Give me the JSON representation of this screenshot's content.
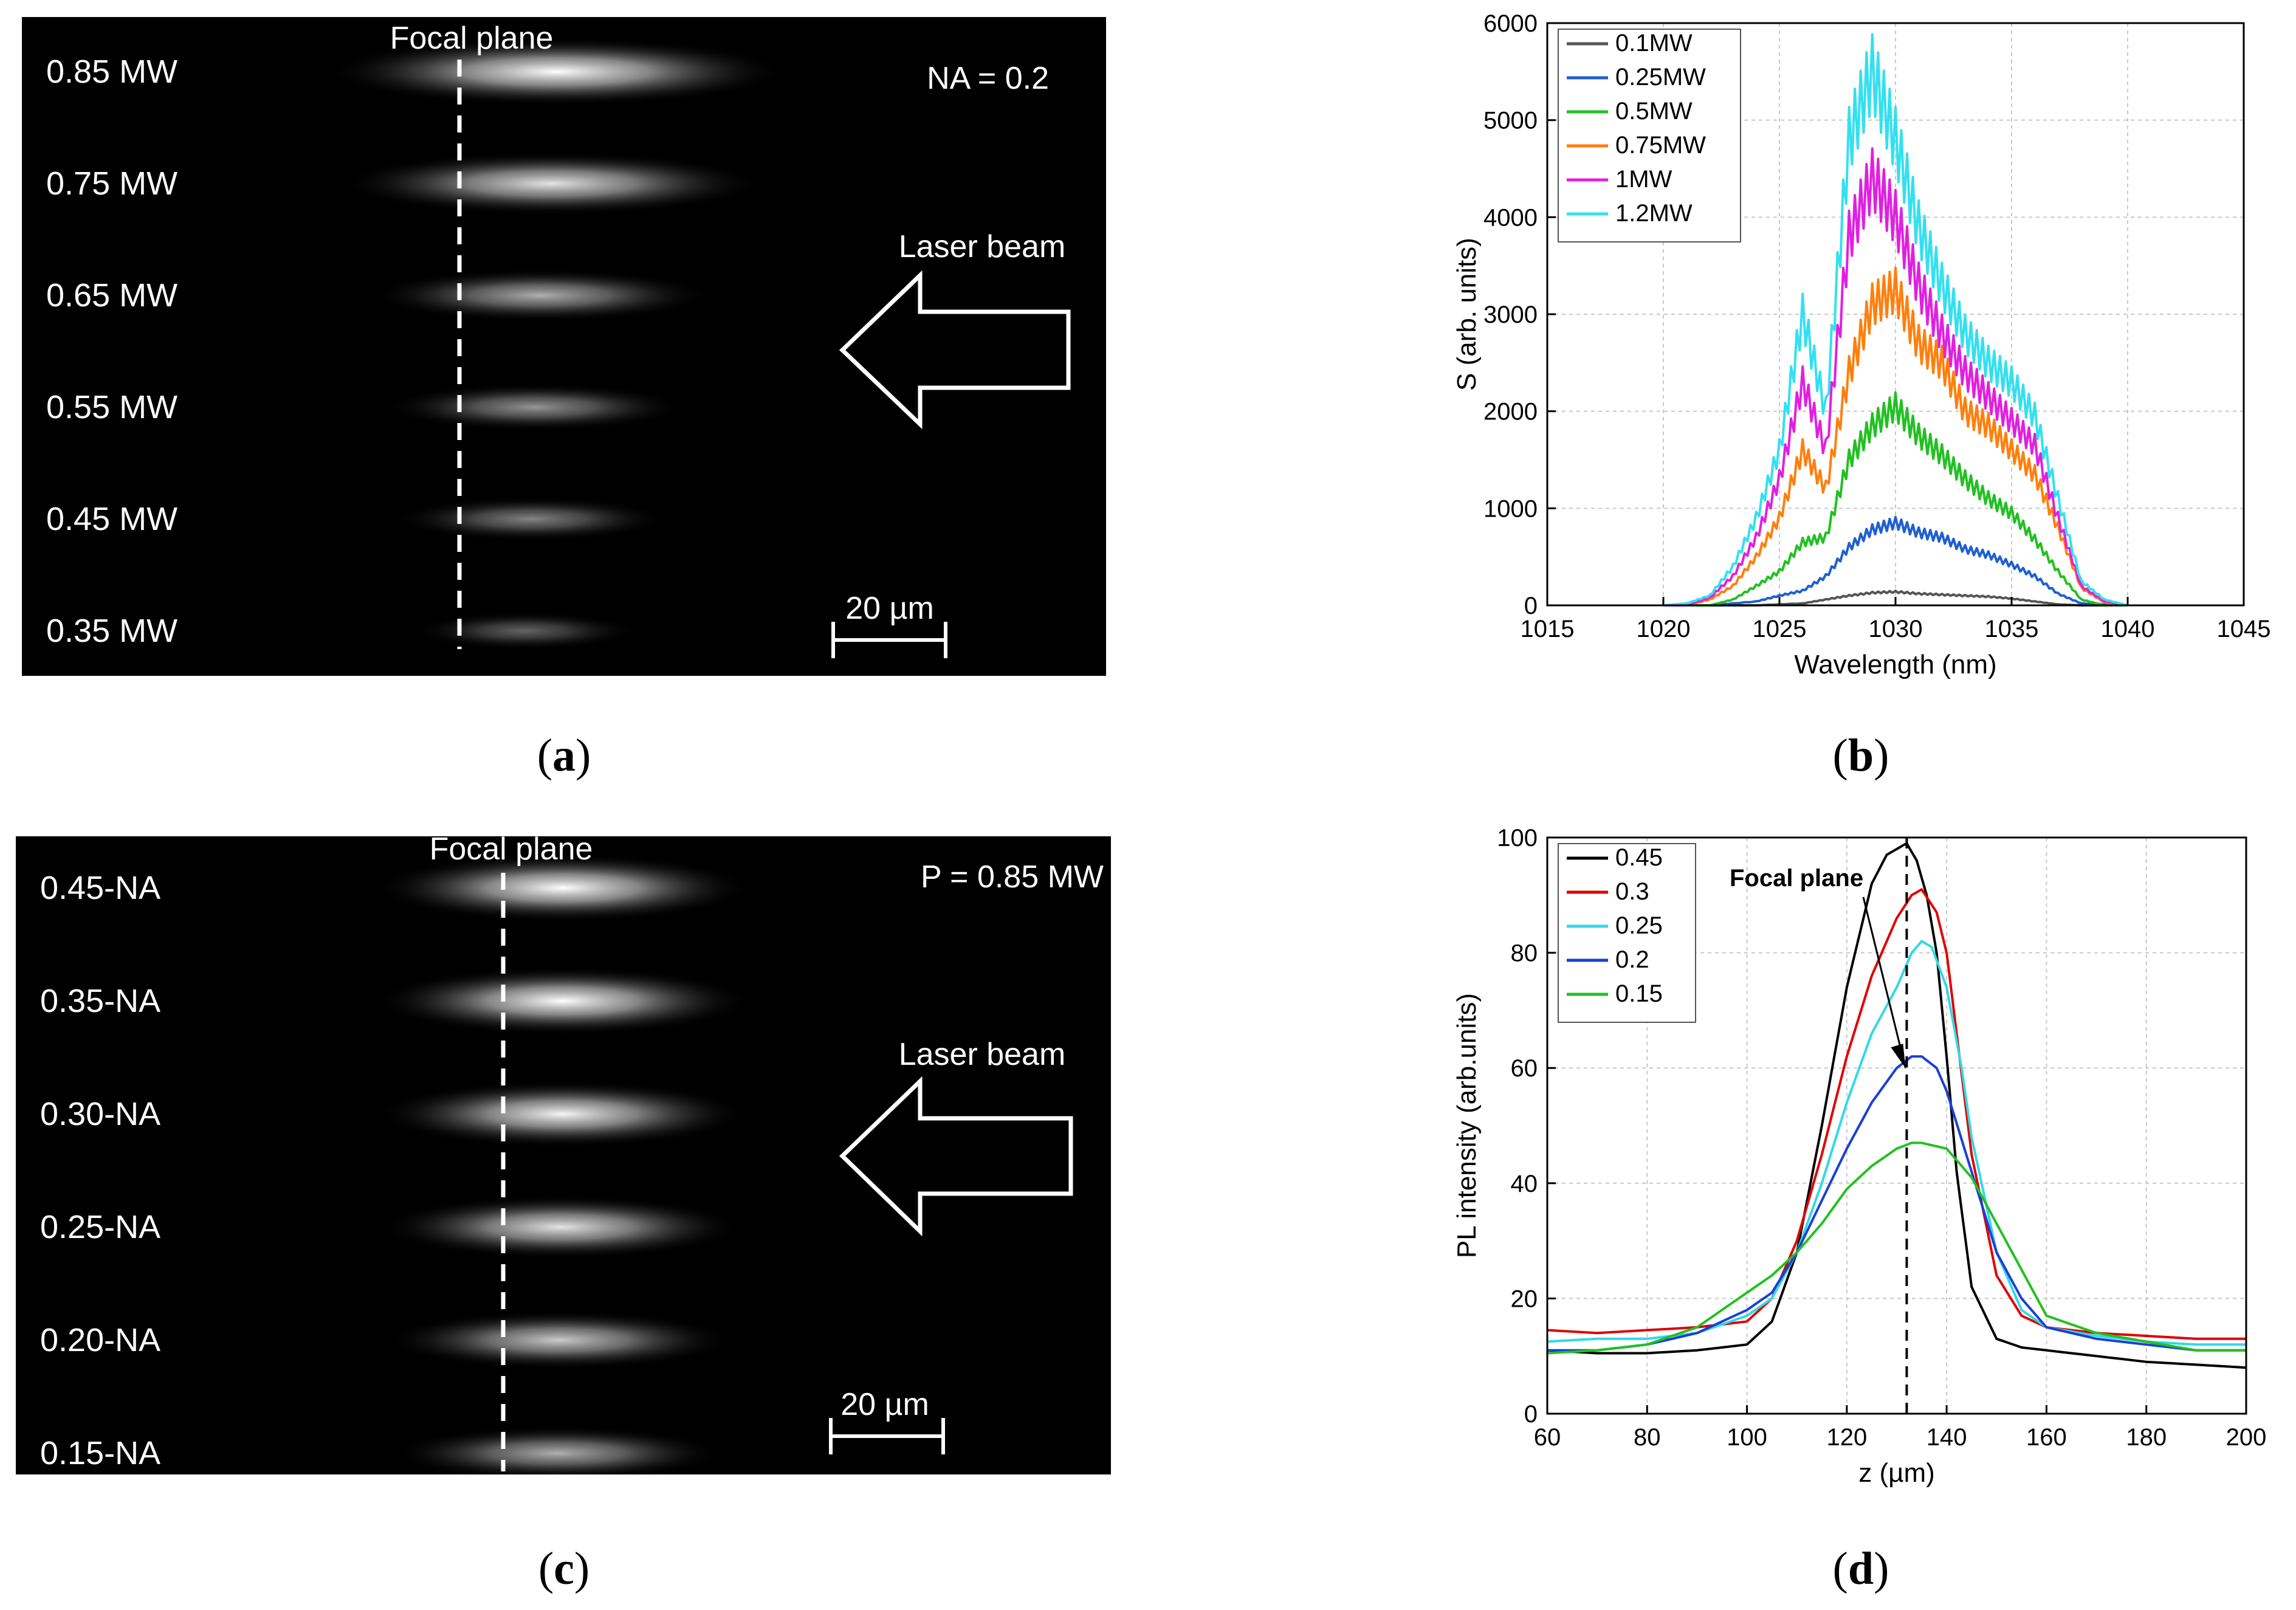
{
  "panel_a": {
    "focal_plane_label": "Focal plane",
    "param_label": "NA = 0.2",
    "laser_label": "Laser beam",
    "scale_label": "20 µm",
    "rows": [
      {
        "label": "0.85 MW",
        "brightness": 1.0
      },
      {
        "label": "0.75 MW",
        "brightness": 0.85
      },
      {
        "label": "0.65 MW",
        "brightness": 0.55
      },
      {
        "label": "0.55 MW",
        "brightness": 0.4
      },
      {
        "label": "0.45 MW",
        "brightness": 0.3
      },
      {
        "label": "0.35 MW",
        "brightness": 0.12
      }
    ],
    "caption": {
      "open": "(",
      "letter": "a",
      "close": ")"
    }
  },
  "panel_c": {
    "focal_plane_label": "Focal plane",
    "param_label": "P = 0.85 MW",
    "laser_label": "Laser beam",
    "scale_label": "20 µm",
    "rows": [
      {
        "label": "0.45-NA",
        "brightness": 1.0
      },
      {
        "label": "0.35-NA",
        "brightness": 1.0
      },
      {
        "label": "0.30-NA",
        "brightness": 0.95
      },
      {
        "label": "0.25-NA",
        "brightness": 0.85
      },
      {
        "label": "0.20-NA",
        "brightness": 0.7
      },
      {
        "label": "0.15-NA",
        "brightness": 0.55
      }
    ],
    "caption": {
      "open": "(",
      "letter": "c",
      "close": ")"
    }
  },
  "chart_b_caption": {
    "open": "(",
    "letter": "b",
    "close": ")"
  },
  "chart_d_caption": {
    "open": "(",
    "letter": "d",
    "close": ")"
  },
  "chart_data": [
    {
      "id": "b",
      "type": "line",
      "xlabel": "Wavelength (nm)",
      "ylabel": "S (arb. units)",
      "xlim": [
        1015,
        1045
      ],
      "ylim": [
        0,
        6000
      ],
      "xticks": [
        1015,
        1020,
        1025,
        1030,
        1035,
        1040,
        1045
      ],
      "yticks": [
        0,
        1000,
        2000,
        3000,
        4000,
        5000,
        6000
      ],
      "grid": true,
      "legend_position": "top-left",
      "series": [
        {
          "name": "0.1MW",
          "color": "#555555",
          "peak": 150,
          "x": [
            1020,
            1022,
            1024,
            1026,
            1027,
            1028,
            1029,
            1030,
            1031,
            1032,
            1033,
            1034,
            1035,
            1036,
            1037,
            1038,
            1040
          ],
          "y": [
            0,
            0,
            0,
            20,
            60,
            100,
            130,
            140,
            120,
            110,
            100,
            90,
            70,
            40,
            10,
            0,
            0
          ]
        },
        {
          "name": "0.25MW",
          "color": "#1f5fd0",
          "peak": 860,
          "x": [
            1020,
            1022,
            1024,
            1025,
            1026,
            1027,
            1028,
            1029,
            1030,
            1031,
            1032,
            1033,
            1034,
            1035,
            1036,
            1037,
            1038,
            1040
          ],
          "y": [
            0,
            0,
            40,
            100,
            150,
            300,
            600,
            780,
            850,
            750,
            700,
            580,
            520,
            420,
            300,
            120,
            20,
            0
          ]
        },
        {
          "name": "0.5MW",
          "color": "#22c022",
          "peak": 2090,
          "x": [
            1020,
            1022,
            1023,
            1024,
            1025,
            1026,
            1027,
            1028,
            1029,
            1030,
            1031,
            1032,
            1033,
            1034,
            1035,
            1036,
            1037,
            1038,
            1039,
            1040
          ],
          "y": [
            0,
            0,
            60,
            200,
            350,
            650,
            700,
            1500,
            1850,
            2050,
            1750,
            1550,
            1300,
            1100,
            950,
            680,
            350,
            60,
            0,
            0
          ]
        },
        {
          "name": "0.75MW",
          "color": "#ff7f0e",
          "peak": 3270,
          "x": [
            1020,
            1021,
            1022,
            1023,
            1024,
            1025,
            1026,
            1027,
            1028,
            1029,
            1030,
            1031,
            1032,
            1033,
            1034,
            1035,
            1036,
            1037,
            1038,
            1039,
            1040
          ],
          "y": [
            0,
            0,
            60,
            200,
            500,
            900,
            1600,
            1200,
            2400,
            3100,
            3250,
            2700,
            2500,
            2000,
            1850,
            1600,
            1350,
            800,
            180,
            30,
            0
          ]
        },
        {
          "name": "1MW",
          "color": "#e020e0",
          "peak": 4560,
          "x": [
            1020,
            1021,
            1022,
            1023,
            1024,
            1025,
            1026,
            1027,
            1028,
            1029,
            1030,
            1031,
            1032,
            1033,
            1034,
            1035,
            1036,
            1037,
            1038,
            1039,
            1040
          ],
          "y": [
            0,
            0,
            80,
            300,
            700,
            1300,
            2300,
            1600,
            3800,
            4400,
            4000,
            3300,
            2800,
            2400,
            2150,
            1900,
            1650,
            900,
            200,
            40,
            0
          ]
        },
        {
          "name": "1.2MW",
          "color": "#33e0f0",
          "peak": 5790,
          "x": [
            1020,
            1021,
            1022,
            1023,
            1024,
            1025,
            1026,
            1027,
            1028,
            1029,
            1030,
            1031,
            1032,
            1033,
            1034,
            1035,
            1036,
            1037,
            1038,
            1039,
            1040
          ],
          "y": [
            0,
            20,
            100,
            400,
            900,
            1600,
            3000,
            2000,
            4800,
            5500,
            4800,
            3900,
            3300,
            2800,
            2500,
            2300,
            1950,
            1100,
            250,
            60,
            0
          ]
        }
      ]
    },
    {
      "id": "d",
      "type": "line",
      "xlabel": "z (µm)",
      "ylabel": "PL intensity (arb.units)",
      "xlim": [
        60,
        200
      ],
      "ylim": [
        0,
        100
      ],
      "xticks": [
        60,
        80,
        100,
        120,
        140,
        160,
        180,
        200
      ],
      "yticks": [
        0,
        20,
        40,
        60,
        80,
        100
      ],
      "grid": true,
      "legend_position": "top-left",
      "annotation": {
        "text": "Focal plane",
        "x": 132
      },
      "series": [
        {
          "name": "0.45",
          "color": "#000000",
          "x": [
            60,
            70,
            80,
            90,
            100,
            105,
            110,
            115,
            120,
            125,
            128,
            130,
            132,
            134,
            136,
            138,
            140,
            142,
            145,
            150,
            155,
            160,
            170,
            180,
            190,
            200
          ],
          "y": [
            11,
            10.5,
            10.5,
            11,
            12,
            16,
            28,
            50,
            74,
            92,
            97,
            98,
            99,
            96,
            90,
            80,
            62,
            42,
            22,
            13,
            11.5,
            11,
            10,
            9,
            8.5,
            8
          ]
        },
        {
          "name": "0.3",
          "color": "#e00000",
          "x": [
            60,
            70,
            80,
            90,
            100,
            105,
            110,
            115,
            120,
            125,
            130,
            133,
            135,
            138,
            140,
            142,
            145,
            150,
            155,
            160,
            170,
            180,
            190,
            200
          ],
          "y": [
            14.5,
            14,
            14.5,
            15,
            16,
            20,
            30,
            45,
            62,
            76,
            86,
            90,
            91,
            87,
            80,
            66,
            45,
            24,
            17,
            15,
            14,
            13.5,
            13,
            13
          ]
        },
        {
          "name": "0.25",
          "color": "#33d8e6",
          "x": [
            60,
            70,
            80,
            90,
            100,
            105,
            110,
            115,
            120,
            125,
            130,
            133,
            135,
            137,
            140,
            143,
            145,
            150,
            155,
            160,
            170,
            180,
            190,
            200
          ],
          "y": [
            12.5,
            13,
            13,
            14,
            17,
            20,
            28,
            40,
            54,
            66,
            74,
            80,
            82,
            81,
            74,
            60,
            48,
            28,
            18,
            15,
            13.5,
            12.5,
            12,
            12
          ]
        },
        {
          "name": "0.2",
          "color": "#1a3fd6",
          "x": [
            60,
            70,
            80,
            90,
            100,
            105,
            110,
            115,
            120,
            125,
            130,
            133,
            135,
            138,
            140,
            145,
            150,
            155,
            160,
            170,
            180,
            190,
            200
          ],
          "y": [
            11,
            11,
            12,
            14,
            18,
            21,
            28,
            37,
            46,
            54,
            60,
            62,
            62,
            60,
            56,
            42,
            28,
            20,
            15,
            13,
            12,
            11,
            11
          ]
        },
        {
          "name": "0.15",
          "color": "#22c022",
          "x": [
            60,
            70,
            80,
            90,
            100,
            105,
            110,
            115,
            120,
            125,
            130,
            133,
            135,
            140,
            145,
            150,
            155,
            160,
            170,
            180,
            190,
            200
          ],
          "y": [
            10.5,
            11,
            12,
            15,
            21,
            24,
            28,
            33,
            39,
            43,
            46,
            47,
            47,
            46,
            41,
            33,
            25,
            17,
            14,
            12.5,
            11,
            11
          ]
        }
      ]
    }
  ]
}
